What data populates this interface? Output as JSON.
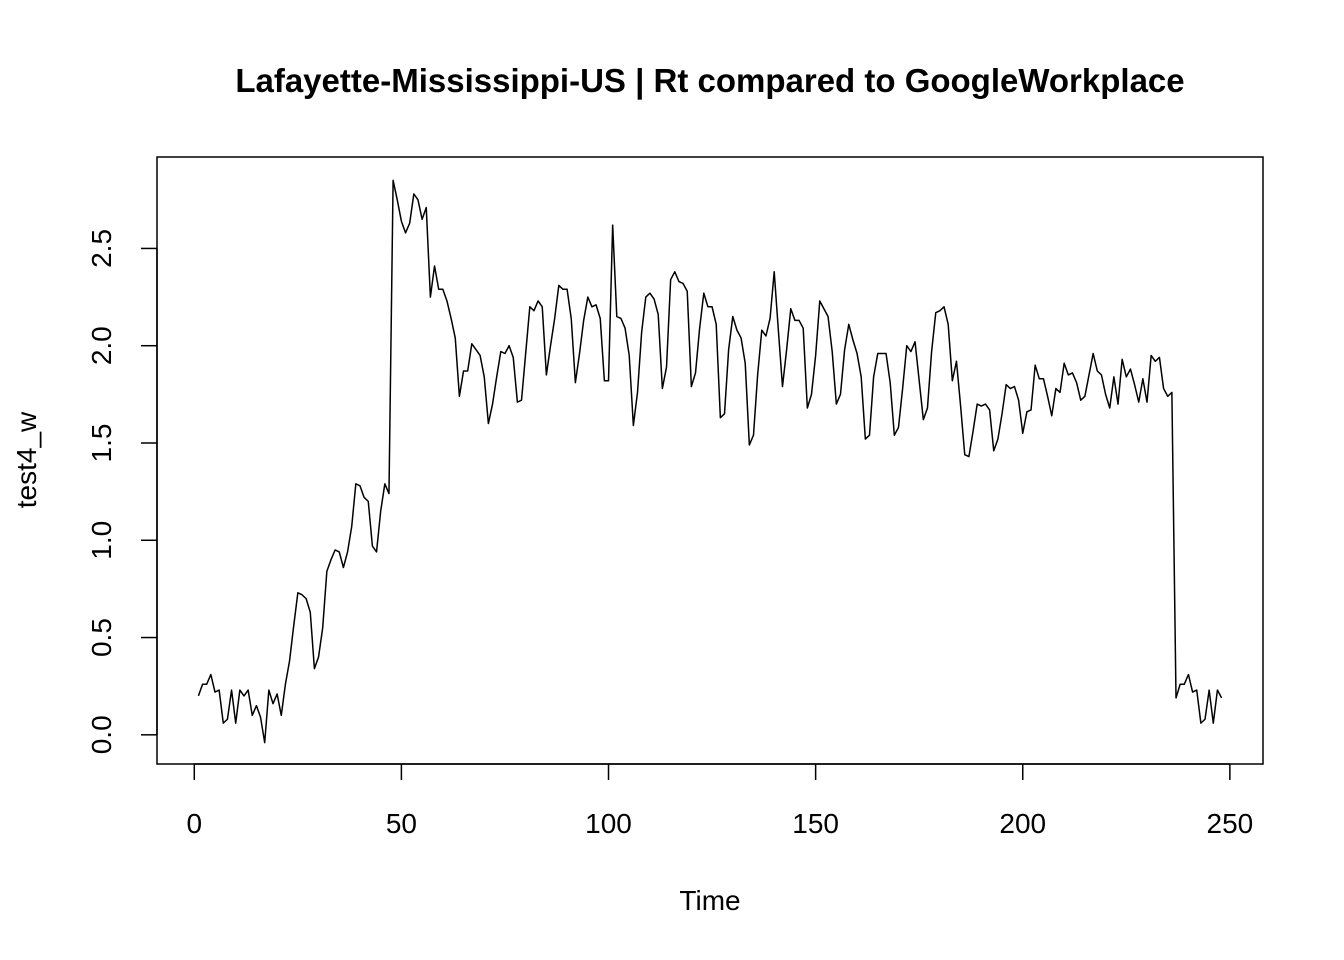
{
  "chart_data": {
    "type": "line",
    "title": "Lafayette-Mississippi-US | Rt compared to GoogleWorkplace",
    "xlabel": "Time",
    "ylabel": "test4_w",
    "xlim": [
      -9,
      258
    ],
    "ylim": [
      -0.15,
      2.97
    ],
    "xticks": [
      0,
      50,
      100,
      150,
      200,
      250
    ],
    "yticks": [
      0.0,
      0.5,
      1.0,
      1.5,
      2.0,
      2.5
    ],
    "xtick_labels": [
      "0",
      "50",
      "100",
      "150",
      "200",
      "250"
    ],
    "ytick_labels": [
      "0.0",
      "0.5",
      "1.0",
      "1.5",
      "2.0",
      "2.5"
    ],
    "grid": false,
    "series": [
      {
        "values": [
          0.2,
          0.26,
          0.26,
          0.31,
          0.22,
          0.23,
          0.06,
          0.08,
          0.23,
          0.06,
          0.23,
          0.2,
          0.23,
          0.1,
          0.15,
          0.09,
          -0.04,
          0.23,
          0.16,
          0.21,
          0.1,
          0.26,
          0.38,
          0.56,
          0.73,
          0.72,
          0.7,
          0.63,
          0.34,
          0.4,
          0.55,
          0.84,
          0.9,
          0.95,
          0.94,
          0.86,
          0.94,
          1.07,
          1.29,
          1.28,
          1.22,
          1.2,
          0.97,
          0.94,
          1.15,
          1.29,
          1.24,
          2.85,
          2.75,
          2.64,
          2.58,
          2.63,
          2.78,
          2.75,
          2.65,
          2.71,
          2.25,
          2.41,
          2.29,
          2.29,
          2.23,
          2.14,
          2.04,
          1.74,
          1.87,
          1.87,
          2.01,
          1.98,
          1.95,
          1.84,
          1.6,
          1.7,
          1.84,
          1.97,
          1.96,
          2.0,
          1.94,
          1.71,
          1.72,
          1.96,
          2.2,
          2.18,
          2.23,
          2.2,
          1.85,
          2.0,
          2.14,
          2.31,
          2.29,
          2.29,
          2.14,
          1.81,
          1.96,
          2.13,
          2.25,
          2.2,
          2.21,
          2.14,
          1.82,
          1.82,
          2.62,
          2.15,
          2.14,
          2.09,
          1.95,
          1.59,
          1.76,
          2.07,
          2.25,
          2.27,
          2.24,
          2.16,
          1.78,
          1.89,
          2.34,
          2.38,
          2.33,
          2.32,
          2.28,
          1.79,
          1.86,
          2.09,
          2.27,
          2.2,
          2.2,
          2.11,
          1.63,
          1.65,
          1.98,
          2.15,
          2.08,
          2.04,
          1.91,
          1.49,
          1.54,
          1.85,
          2.08,
          2.05,
          2.14,
          2.38,
          2.08,
          1.79,
          1.98,
          2.19,
          2.13,
          2.13,
          2.09,
          1.68,
          1.75,
          1.95,
          2.23,
          2.19,
          2.15,
          1.97,
          1.7,
          1.75,
          1.98,
          2.11,
          2.03,
          1.96,
          1.84,
          1.52,
          1.54,
          1.84,
          1.96,
          1.96,
          1.96,
          1.81,
          1.54,
          1.58,
          1.78,
          2.0,
          1.97,
          2.02,
          1.82,
          1.62,
          1.68,
          1.97,
          2.17,
          2.18,
          2.2,
          2.11,
          1.82,
          1.92,
          1.69,
          1.44,
          1.43,
          1.56,
          1.7,
          1.69,
          1.7,
          1.67,
          1.46,
          1.52,
          1.65,
          1.8,
          1.78,
          1.79,
          1.72,
          1.55,
          1.66,
          1.67,
          1.9,
          1.83,
          1.83,
          1.74,
          1.64,
          1.78,
          1.76,
          1.91,
          1.85,
          1.86,
          1.81,
          1.72,
          1.74,
          1.85,
          1.96,
          1.87,
          1.85,
          1.75,
          1.68,
          1.84,
          1.7,
          1.93,
          1.84,
          1.88,
          1.8,
          1.71,
          1.83,
          1.71,
          1.95,
          1.92,
          1.94,
          1.78,
          1.74,
          1.76,
          0.19,
          0.26,
          0.26,
          0.31,
          0.22,
          0.23,
          0.06,
          0.08,
          0.23,
          0.06,
          0.23,
          0.19
        ]
      }
    ]
  }
}
